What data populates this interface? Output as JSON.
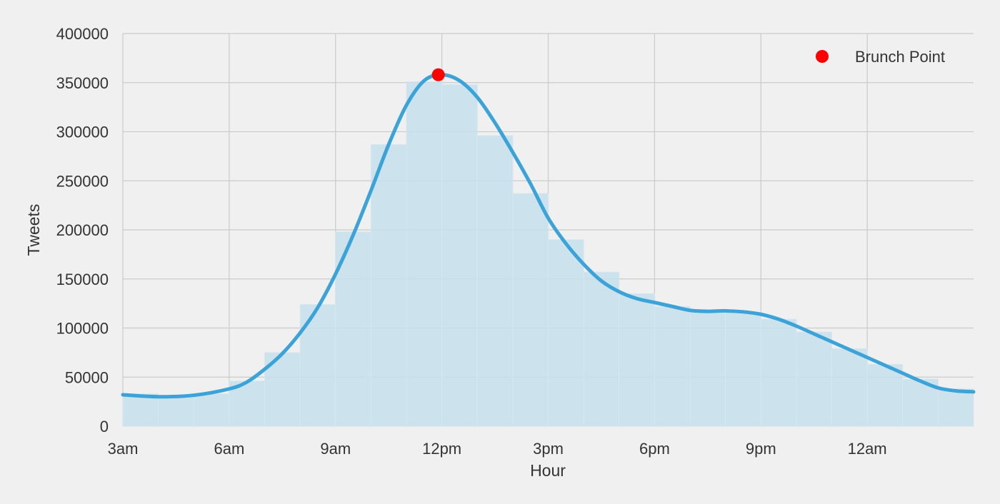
{
  "chart_data": {
    "type": "bar",
    "title": "",
    "xlabel": "Hour",
    "ylabel": "Tweets",
    "grid": true,
    "legend_placement": "top-right",
    "xlim": [
      3,
      27
    ],
    "ylim": [
      0,
      400000
    ],
    "x_ticks": [
      {
        "value": 3,
        "label": "3am"
      },
      {
        "value": 6,
        "label": "6am"
      },
      {
        "value": 9,
        "label": "9am"
      },
      {
        "value": 12,
        "label": "12pm"
      },
      {
        "value": 15,
        "label": "3pm"
      },
      {
        "value": 18,
        "label": "6pm"
      },
      {
        "value": 21,
        "label": "9pm"
      },
      {
        "value": 24,
        "label": "12am"
      }
    ],
    "y_ticks": [
      0,
      50000,
      100000,
      150000,
      200000,
      250000,
      300000,
      350000,
      400000
    ],
    "histogram": {
      "color": "#c5dfeb",
      "bins": [
        {
          "start": 3,
          "end": 4,
          "value": 33000
        },
        {
          "start": 4,
          "end": 5,
          "value": 30000
        },
        {
          "start": 5,
          "end": 6,
          "value": 33000
        },
        {
          "start": 6,
          "end": 7,
          "value": 46000
        },
        {
          "start": 7,
          "end": 8,
          "value": 75000
        },
        {
          "start": 8,
          "end": 9,
          "value": 124000
        },
        {
          "start": 9,
          "end": 10,
          "value": 198000
        },
        {
          "start": 10,
          "end": 11,
          "value": 287000
        },
        {
          "start": 11,
          "end": 12,
          "value": 351000
        },
        {
          "start": 12,
          "end": 13,
          "value": 348000
        },
        {
          "start": 13,
          "end": 14,
          "value": 296000
        },
        {
          "start": 14,
          "end": 15,
          "value": 237000
        },
        {
          "start": 15,
          "end": 16,
          "value": 190000
        },
        {
          "start": 16,
          "end": 17,
          "value": 157000
        },
        {
          "start": 17,
          "end": 18,
          "value": 135000
        },
        {
          "start": 18,
          "end": 19,
          "value": 122000
        },
        {
          "start": 19,
          "end": 20,
          "value": 117000
        },
        {
          "start": 20,
          "end": 21,
          "value": 116000
        },
        {
          "start": 21,
          "end": 22,
          "value": 109000
        },
        {
          "start": 22,
          "end": 23,
          "value": 96000
        },
        {
          "start": 23,
          "end": 24,
          "value": 79000
        },
        {
          "start": 24,
          "end": 25,
          "value": 63000
        },
        {
          "start": 25,
          "end": 26,
          "value": 48000
        },
        {
          "start": 26,
          "end": 27,
          "value": 38000
        }
      ]
    },
    "density_curve": {
      "color": "#3ba3d8",
      "points": [
        [
          3,
          32000
        ],
        [
          4,
          30000
        ],
        [
          5,
          31500
        ],
        [
          6,
          38000
        ],
        [
          6.5,
          45000
        ],
        [
          7,
          58000
        ],
        [
          7.5,
          74000
        ],
        [
          8,
          95000
        ],
        [
          8.5,
          121000
        ],
        [
          9,
          155000
        ],
        [
          9.5,
          195000
        ],
        [
          10,
          240000
        ],
        [
          10.5,
          287000
        ],
        [
          11,
          327000
        ],
        [
          11.5,
          352000
        ],
        [
          12,
          358000
        ],
        [
          12.5,
          352000
        ],
        [
          13,
          335000
        ],
        [
          13.5,
          309000
        ],
        [
          14,
          279000
        ],
        [
          14.5,
          247000
        ],
        [
          15,
          212000
        ],
        [
          15.5,
          186000
        ],
        [
          16,
          165000
        ],
        [
          16.5,
          148000
        ],
        [
          17,
          137000
        ],
        [
          17.5,
          130000
        ],
        [
          18,
          126000
        ],
        [
          18.5,
          122000
        ],
        [
          19,
          118000
        ],
        [
          19.5,
          117000
        ],
        [
          20,
          117500
        ],
        [
          20.5,
          116500
        ],
        [
          21,
          114000
        ],
        [
          21.5,
          109000
        ],
        [
          22,
          102000
        ],
        [
          22.5,
          94000
        ],
        [
          23,
          86000
        ],
        [
          23.5,
          78000
        ],
        [
          24,
          70000
        ],
        [
          24.5,
          62000
        ],
        [
          25,
          54000
        ],
        [
          25.5,
          46000
        ],
        [
          26,
          39000
        ],
        [
          26.5,
          36000
        ],
        [
          27,
          35000
        ]
      ]
    },
    "series": [
      {
        "name": "Brunch Point",
        "x": 11.9,
        "y": 358000,
        "color": "#ff0000"
      }
    ]
  }
}
